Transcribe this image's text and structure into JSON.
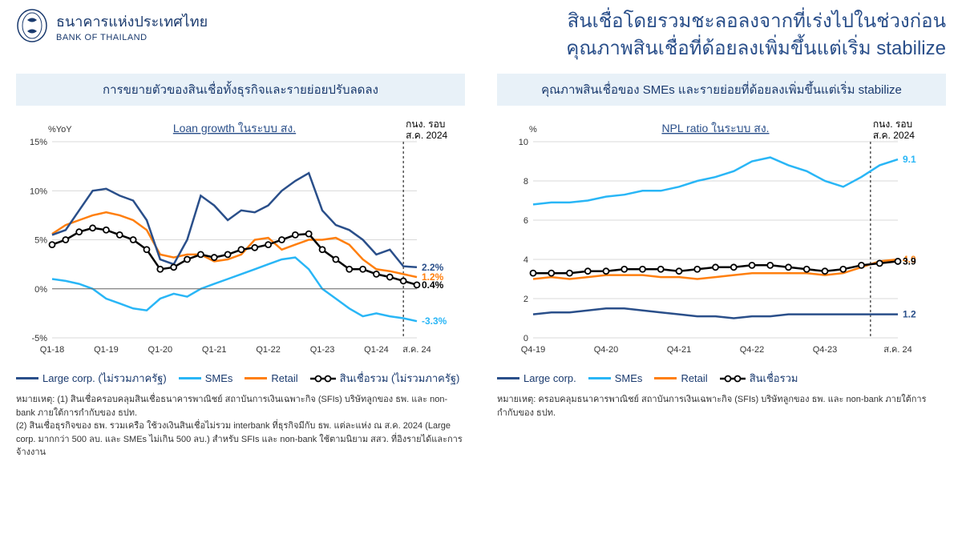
{
  "org": {
    "th": "ธนาคารแห่งประเทศไทย",
    "en": "BANK OF THAILAND"
  },
  "title": {
    "line1": "สินเชื่อโดยรวมชะลอลงจากที่เร่งไปในช่วงก่อน",
    "line2": "คุณภาพสินเชื่อที่ด้อยลงเพิ่มขึ้นแต่เริ่ม stabilize"
  },
  "colors": {
    "large_corp": "#2a4f8a",
    "smes": "#29b6f6",
    "retail": "#ff7f0e",
    "total": "#000000",
    "grid": "#cccccc",
    "header_bg": "#e8f1f8"
  },
  "chart_left": {
    "panel_title": "การขยายตัวของสินเชื่อทั้งธุรกิจและรายย่อยปรับลดลง",
    "subtitle": "Loan growth ในระบบ สง.",
    "y_unit": "%YoY",
    "marker_label": "กนง. รอบ\nส.ค. 2024",
    "xlim": [
      0,
      27
    ],
    "ylim": [
      -5,
      15
    ],
    "yticks": [
      -5,
      0,
      5,
      10,
      15
    ],
    "ytick_labels": [
      "-5%",
      "0%",
      "5%",
      "10%",
      "15%"
    ],
    "xticks": [
      0,
      4,
      8,
      12,
      16,
      20,
      24,
      27
    ],
    "xtick_labels": [
      "Q1-18",
      "Q1-19",
      "Q1-20",
      "Q1-21",
      "Q1-22",
      "Q1-23",
      "Q1-24",
      "ส.ค. 24"
    ],
    "marker_x": 26,
    "series": {
      "large_corp": {
        "label": "Large corp. (ไม่รวมภาครัฐ)",
        "end_value": "2.2%",
        "data": [
          5.5,
          6,
          8,
          10,
          10.2,
          9.5,
          9,
          7,
          3,
          2.5,
          5,
          9.5,
          8.5,
          7,
          8,
          7.8,
          8.5,
          10,
          11,
          11.8,
          8,
          6.5,
          6,
          5,
          3.5,
          4,
          2.3,
          2.2
        ]
      },
      "smes": {
        "label": "SMEs",
        "end_value": "-3.3%",
        "data": [
          1,
          0.8,
          0.5,
          0,
          -1,
          -1.5,
          -2,
          -2.2,
          -1,
          -0.5,
          -0.8,
          0,
          0.5,
          1,
          1.5,
          2,
          2.5,
          3,
          3.2,
          2,
          0,
          -1,
          -2,
          -2.8,
          -2.5,
          -2.8,
          -3,
          -3.3
        ]
      },
      "retail": {
        "label": "Retail",
        "end_value": "1.2%",
        "data": [
          5.6,
          6.5,
          7,
          7.5,
          7.8,
          7.5,
          7,
          6,
          3.5,
          3.2,
          3.5,
          3.5,
          2.8,
          3,
          3.5,
          5,
          5.2,
          4,
          4.5,
          5,
          5,
          5.2,
          4.5,
          3,
          2,
          1.8,
          1.5,
          1.2
        ]
      },
      "total": {
        "label": "สินเชื่อรวม (ไม่รวมภาครัฐ)",
        "end_value": "0.4%",
        "data": [
          4.5,
          5,
          5.8,
          6.2,
          6,
          5.5,
          5,
          4,
          2,
          2.2,
          3,
          3.5,
          3.2,
          3.5,
          4,
          4.2,
          4.5,
          5,
          5.5,
          5.6,
          4,
          3,
          2,
          2,
          1.5,
          1.2,
          0.8,
          0.4
        ]
      }
    },
    "marker_style": "circle",
    "line_width": 2.5,
    "footnote": "หมายเหตุ: (1) สินเชื่อครอบคลุมสินเชื่อธนาคารพาณิชย์ สถาบันการเงินเฉพาะกิจ (SFIs) บริษัทลูกของ ธพ. และ non-bank ภายใต้การกำกับของ ธปท.\n(2) สินเชื่อธุรกิจของ ธพ. รวมเครือ ใช้วงเงินสินเชื่อไม่รวม interbank ที่ธุรกิจมีกับ ธพ. แต่ละแห่ง ณ ส.ค. 2024 (Large corp. มากกว่า 500 ลบ. และ SMEs ไม่เกิน 500 ลบ.)  สำหรับ SFIs และ non-bank ใช้ตามนิยาม สสว. ที่อิงรายได้และการจ้างงาน"
  },
  "chart_right": {
    "panel_title": "คุณภาพสินเชื่อของ SMEs และรายย่อยที่ด้อยลงเพิ่มขึ้นแต่เริ่ม stabilize",
    "subtitle": "NPL ratio ในระบบ สง.",
    "y_unit": "%",
    "marker_label": "กนง. รอบ\nส.ค. 2024",
    "xlim": [
      0,
      20
    ],
    "ylim": [
      0,
      10
    ],
    "yticks": [
      0,
      2,
      4,
      6,
      8,
      10
    ],
    "ytick_labels": [
      "0",
      "2",
      "4",
      "6",
      "8",
      "10"
    ],
    "xticks": [
      0,
      4,
      8,
      12,
      16,
      20
    ],
    "xtick_labels": [
      "Q4-19",
      "Q4-20",
      "Q4-21",
      "Q4-22",
      "Q4-23",
      "ส.ค. 24"
    ],
    "marker_x": 18.5,
    "series": {
      "large_corp": {
        "label": "Large corp.",
        "end_value": "1.2",
        "data": [
          1.2,
          1.3,
          1.3,
          1.4,
          1.5,
          1.5,
          1.4,
          1.3,
          1.2,
          1.1,
          1.1,
          1.0,
          1.1,
          1.1,
          1.2,
          1.2,
          1.2,
          1.2,
          1.2,
          1.2,
          1.2
        ]
      },
      "smes": {
        "label": "SMEs",
        "end_value": "9.1",
        "data": [
          6.8,
          6.9,
          6.9,
          7,
          7.2,
          7.3,
          7.5,
          7.5,
          7.7,
          8,
          8.2,
          8.5,
          9,
          9.2,
          8.8,
          8.5,
          8,
          7.7,
          8.2,
          8.8,
          9.1
        ]
      },
      "retail": {
        "label": "Retail",
        "end_value": "4.0",
        "data": [
          3.0,
          3.1,
          3.0,
          3.1,
          3.2,
          3.2,
          3.2,
          3.1,
          3.1,
          3.0,
          3.1,
          3.2,
          3.3,
          3.3,
          3.3,
          3.3,
          3.2,
          3.3,
          3.6,
          3.9,
          4.0
        ]
      },
      "total": {
        "label": "สินเชื่อรวม",
        "end_value": "3.9",
        "data": [
          3.3,
          3.3,
          3.3,
          3.4,
          3.4,
          3.5,
          3.5,
          3.5,
          3.4,
          3.5,
          3.6,
          3.6,
          3.7,
          3.7,
          3.6,
          3.5,
          3.4,
          3.5,
          3.7,
          3.8,
          3.9
        ]
      }
    },
    "marker_style": "circle",
    "line_width": 2.5,
    "footnote": "หมายเหตุ: ครอบคลุมธนาคารพาณิชย์ สถาบันการเงินเฉพาะกิจ (SFIs) บริษัทลูกของ ธพ. และ non-bank ภายใต้การกำกับของ ธปท."
  },
  "legend_right": {
    "large_corp": "Large corp.",
    "smes": "SMEs",
    "retail": "Retail",
    "total": "สินเชื่อรวม"
  }
}
